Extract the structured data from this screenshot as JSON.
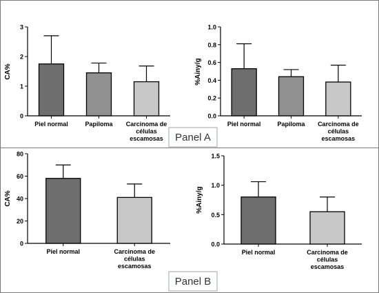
{
  "panels": [
    {
      "label": "Panel A"
    },
    {
      "label": "Panel B"
    }
  ],
  "colors": {
    "dark_bar": "#6e6e6e",
    "mid_bar": "#909090",
    "light_bar": "#c8c8c8",
    "axis": "#000000",
    "border": "#7a7a7a",
    "label_box_border": "#9aa3b5"
  },
  "chart_data": [
    {
      "panel": "A",
      "type": "bar",
      "ylabel": "CA%",
      "ylim": [
        0,
        3
      ],
      "yticks": [
        "0",
        "1",
        "2",
        "3"
      ],
      "categories": [
        [
          "Piel normal"
        ],
        [
          "Papiloma"
        ],
        [
          "Carcinoma de",
          "células",
          "escamosas"
        ]
      ],
      "values": [
        1.75,
        1.45,
        1.15
      ],
      "errors": [
        0.95,
        0.33,
        0.53
      ],
      "bar_colors": [
        "#6e6e6e",
        "#909090",
        "#c8c8c8"
      ]
    },
    {
      "panel": "A",
      "type": "bar",
      "ylabel": "%Ainy/g",
      "ylim": [
        0,
        1.0
      ],
      "yticks": [
        "0.0",
        "0.2",
        "0.4",
        "0.6",
        "0.8",
        "1.0"
      ],
      "categories": [
        [
          "Piel normal"
        ],
        [
          "Papiloma"
        ],
        [
          "Carcinoma de",
          "células",
          "escamosas"
        ]
      ],
      "values": [
        0.53,
        0.44,
        0.38
      ],
      "errors": [
        0.28,
        0.08,
        0.19
      ],
      "bar_colors": [
        "#6e6e6e",
        "#909090",
        "#c8c8c8"
      ]
    },
    {
      "panel": "B",
      "type": "bar",
      "ylabel": "CA%",
      "ylim": [
        0,
        80
      ],
      "yticks": [
        "0",
        "20",
        "40",
        "60",
        "80"
      ],
      "categories": [
        [
          "Piel normal"
        ],
        [
          "Carcinoma de",
          "células",
          "escamosas"
        ]
      ],
      "values": [
        58,
        41
      ],
      "errors": [
        12,
        12
      ],
      "bar_colors": [
        "#6e6e6e",
        "#c8c8c8"
      ]
    },
    {
      "panel": "B",
      "type": "bar",
      "ylabel": "%Ainy/g",
      "ylim": [
        0,
        1.5
      ],
      "yticks": [
        "0.0",
        "0.5",
        "1.0",
        "1.5"
      ],
      "categories": [
        [
          "Piel normal"
        ],
        [
          "Carcinoma de",
          "células",
          "escamosas"
        ]
      ],
      "values": [
        0.8,
        0.55
      ],
      "errors": [
        0.26,
        0.25
      ],
      "bar_colors": [
        "#6e6e6e",
        "#c8c8c8"
      ]
    }
  ]
}
